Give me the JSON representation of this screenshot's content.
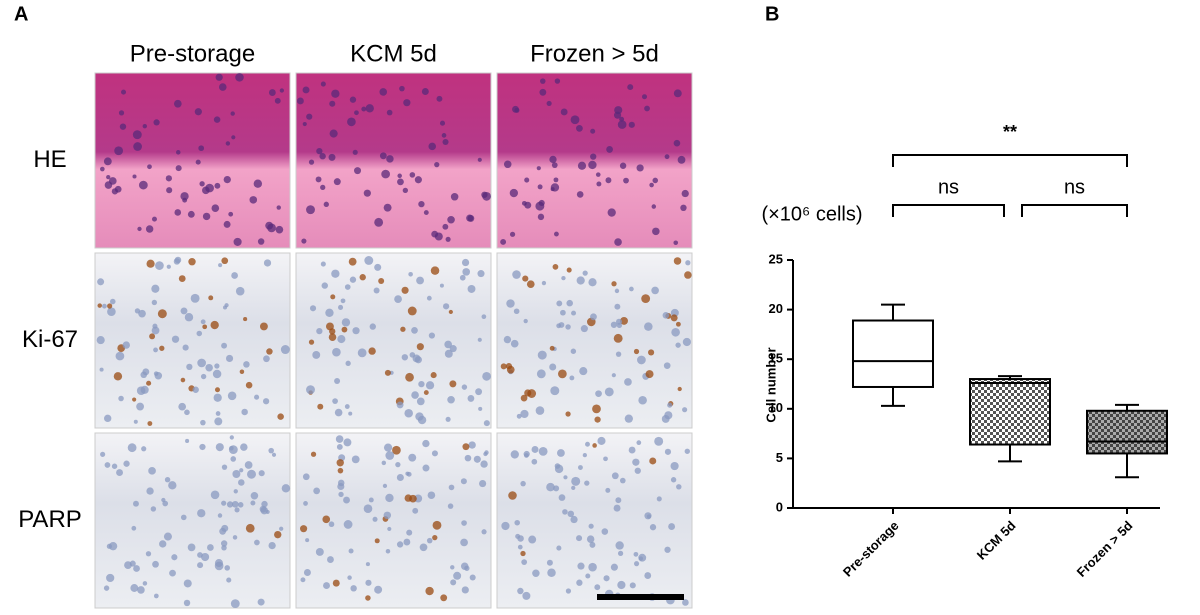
{
  "panel_a": {
    "label": "A",
    "columns": [
      "Pre-storage",
      "KCM 5d",
      "Frozen > 5d"
    ],
    "rows": [
      "HE",
      "Ki-67",
      "PARP"
    ]
  },
  "chart_data": {
    "type": "box",
    "panel_label": "B",
    "unit_label": "(×10⁶ cells)",
    "y_label": "Cell number",
    "categories": [
      "Pre-storage",
      "KCM 5d",
      "Frozen > 5d"
    ],
    "min": [
      10.3,
      4.7,
      3.1
    ],
    "q1": [
      12.2,
      6.4,
      5.5
    ],
    "median": [
      14.8,
      12.6,
      6.7
    ],
    "q3": [
      18.9,
      13.0,
      9.8
    ],
    "max": [
      20.5,
      13.3,
      10.4
    ],
    "ylim": [
      0,
      25
    ],
    "yticks": [
      0,
      5,
      10,
      15,
      20,
      25
    ],
    "annotations": [
      "**",
      "ns",
      "ns"
    ]
  }
}
